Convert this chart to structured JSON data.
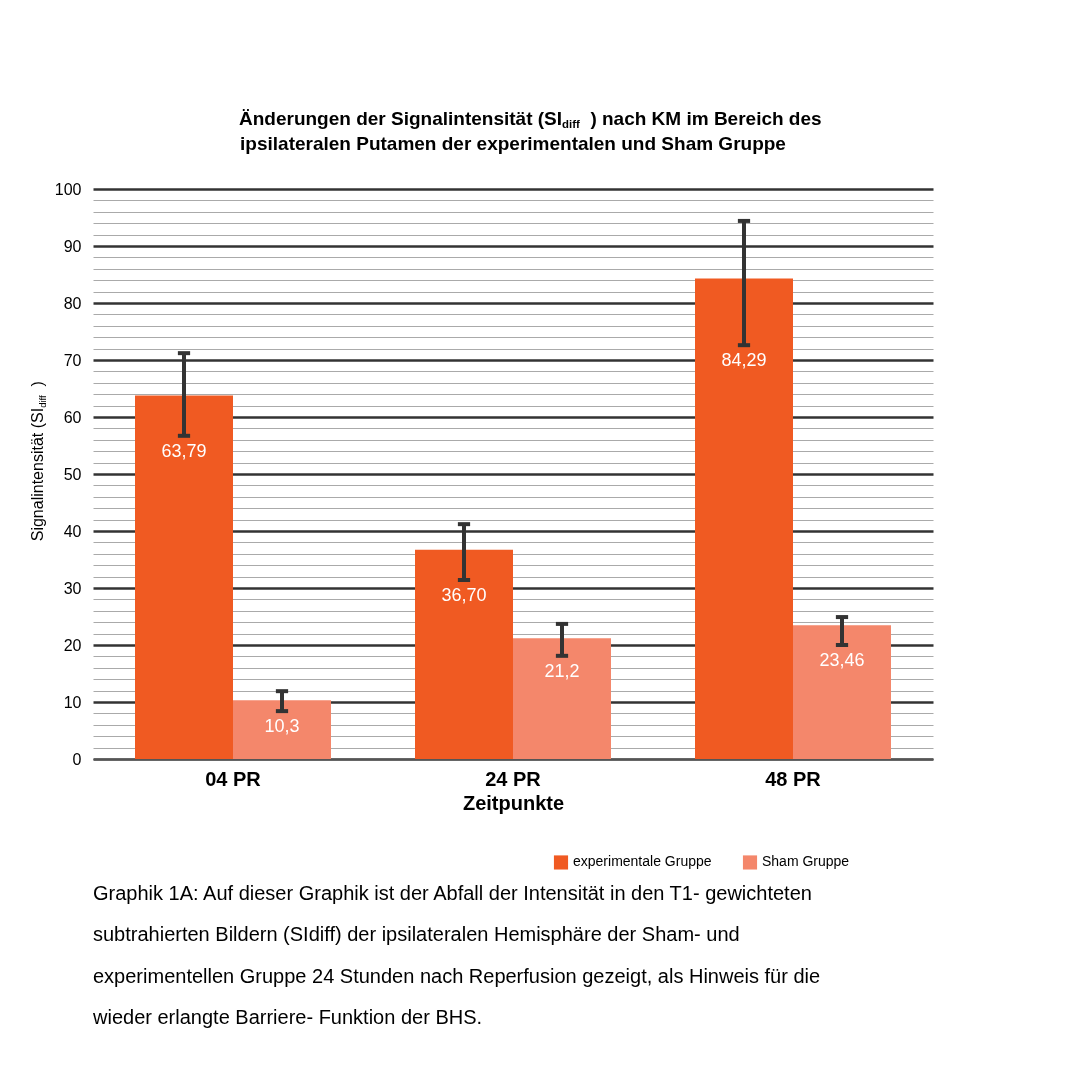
{
  "chart_data": {
    "type": "bar",
    "title": "Änderungen der Signalintensität (SI$_{diff}$) nach KM im Bereich des ipsilateralen Putamen der experimentalen und Sham Gruppe",
    "xlabel": "Zeitpunkte",
    "ylabel": "Signalintensität (SI$_{diff}$ )",
    "categories": [
      "04 PR",
      "24 PR",
      "48 PR"
    ],
    "series": [
      {
        "name": "experimentale Gruppe",
        "color": "#f05a22",
        "values": [
          63.79,
          36.7,
          84.29
        ],
        "errors": [
          [
            56.7,
            71.2
          ],
          [
            31.4,
            41.2
          ],
          [
            72.6,
            94.4
          ]
        ],
        "value_labels": [
          "63,79",
          "36,70",
          "84,29"
        ]
      },
      {
        "name": "Sham Gruppe",
        "color": "#f4876b",
        "values": [
          10.3,
          21.2,
          23.46
        ],
        "errors": [
          [
            8.4,
            11.9
          ],
          [
            18.1,
            23.7
          ],
          [
            20.0,
            24.9
          ]
        ],
        "value_labels": [
          "10,3",
          "21,2",
          "23,46"
        ]
      }
    ],
    "ylim": [
      0,
      100
    ],
    "yticks": [
      0,
      {
        "value": 2,
        "label": null
      },
      {
        "value": 4,
        "label": null
      },
      {
        "value": 6,
        "label": null
      },
      {
        "value": 8,
        "label": null
      },
      10,
      {
        "value": 12,
        "label": null
      },
      {
        "value": 14,
        "label": null
      },
      {
        "value": 16,
        "label": null
      },
      {
        "value": 18,
        "label": null
      },
      20,
      {
        "value": 22,
        "label": null
      },
      {
        "value": 24,
        "label": null
      },
      {
        "value": 26,
        "label": null
      },
      {
        "value": 28,
        "label": null
      },
      30,
      {
        "value": 32,
        "label": null
      },
      {
        "value": 34,
        "label": null
      },
      {
        "value": 36,
        "label": null
      },
      {
        "value": 38,
        "label": null
      },
      40,
      {
        "value": 42,
        "label": null
      },
      {
        "value": 44,
        "label": null
      },
      {
        "value": 46,
        "label": null
      },
      {
        "value": 48,
        "label": null
      },
      50,
      {
        "value": 52,
        "label": null
      },
      {
        "value": 54,
        "label": null
      },
      {
        "value": 56,
        "label": null
      },
      {
        "value": 58,
        "label": null
      },
      60,
      {
        "value": 62,
        "label": null
      },
      {
        "value": 64,
        "label": null
      },
      {
        "value": 66,
        "label": null
      },
      {
        "value": 68,
        "label": null
      },
      70,
      {
        "value": 72,
        "label": null
      },
      {
        "value": 74,
        "label": null
      },
      {
        "value": 76,
        "label": null
      },
      {
        "value": 78,
        "label": null
      },
      80,
      {
        "value": 82,
        "label": null
      },
      {
        "value": 84,
        "label": null
      },
      {
        "value": 86,
        "label": null
      },
      {
        "value": 88,
        "label": null
      },
      90,
      {
        "value": 92,
        "label": null
      },
      {
        "value": 94,
        "label": null
      },
      {
        "value": 96,
        "label": null
      },
      {
        "value": 98,
        "label": null
      },
      100
    ],
    "grid": "y",
    "legend": "bottom right",
    "annotations": [
      "Graphik 1A: Auf dieser Graphik ist der Abfall der Intensität in den T1- gewichteten subtrahierten Bildern (SIdiff) der ipsilateralen Hemisphäre der Sham- und experimentellen Gruppe 24 Stunden nach Reperfusion gezeigt, als Hinweis für die wieder erlangte Barriere- Funktion der BHS."
    ]
  }
}
